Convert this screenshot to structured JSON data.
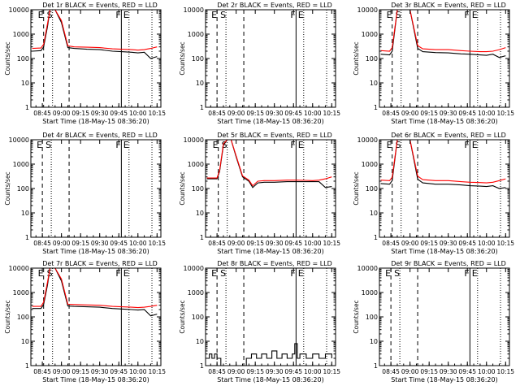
{
  "layout": {
    "rows": 3,
    "cols": 3
  },
  "common": {
    "ylabel": "Counts/sec",
    "xlabel": "Start Time (18-May-15 08:36:20)",
    "x_ticks": [
      "08:45",
      "09:00",
      "09:15",
      "09:30",
      "09:45",
      "10:00",
      "10:15"
    ],
    "y_ticks": [
      "1",
      "10",
      "100",
      "1000",
      "10000"
    ],
    "colors": {
      "events": "#000000",
      "lld": "#ff0000",
      "axis": "#000000"
    }
  },
  "chart_data": [
    {
      "type": "line",
      "title": "Det 1r BLACK = Events, RED = LLD",
      "xlim": [
        "08:36",
        "10:18"
      ],
      "ylim": [
        1,
        10000
      ],
      "yscale": "log",
      "markers": [
        {
          "time": "08:46",
          "label": "E",
          "style": "dashed"
        },
        {
          "time": "08:53",
          "label": "S",
          "style": "dotted"
        },
        {
          "time": "09:06",
          "label": "",
          "style": "dashed"
        },
        {
          "time": "09:47",
          "label": "F",
          "style": "solid"
        },
        {
          "time": "09:53",
          "label": "E",
          "style": "dotted"
        },
        {
          "time": "10:11",
          "label": "",
          "style": "dotted"
        }
      ],
      "series": [
        {
          "name": "BLACK = Events",
          "color": "#000000",
          "x": [
            "08:37",
            "08:44",
            "08:46",
            "08:49",
            "08:51",
            "08:53",
            "08:55",
            "09:00",
            "09:05",
            "09:10",
            "09:20",
            "09:30",
            "09:40",
            "09:47",
            "09:55",
            "10:00",
            "10:05",
            "10:10",
            "10:15"
          ],
          "y": [
            200,
            210,
            300,
            2000,
            10000,
            10000,
            10000,
            3000,
            280,
            260,
            240,
            230,
            200,
            190,
            180,
            170,
            180,
            100,
            120
          ]
        },
        {
          "name": "RED = LLD",
          "color": "#ff0000",
          "x": [
            "08:37",
            "08:44",
            "08:46",
            "08:49",
            "08:51",
            "08:53",
            "08:55",
            "09:00",
            "09:05",
            "09:10",
            "09:20",
            "09:30",
            "09:40",
            "09:47",
            "09:55",
            "10:00",
            "10:05",
            "10:10",
            "10:15"
          ],
          "y": [
            260,
            270,
            380,
            2600,
            10000,
            10000,
            10000,
            3600,
            330,
            300,
            290,
            280,
            250,
            240,
            230,
            220,
            230,
            260,
            300
          ]
        }
      ]
    },
    {
      "type": "line",
      "title": "Det 2r BLACK = Events, RED = LLD",
      "xlim": [
        "08:36",
        "10:18"
      ],
      "ylim": [
        1,
        10000
      ],
      "yscale": "log",
      "markers": [
        {
          "time": "08:45",
          "label": "E",
          "style": "dashed"
        },
        {
          "time": "08:52",
          "label": "S",
          "style": "dotted"
        },
        {
          "time": "09:06",
          "label": "",
          "style": "dashed"
        },
        {
          "time": "09:47",
          "label": "F",
          "style": "solid"
        },
        {
          "time": "09:53",
          "label": "E",
          "style": "dotted"
        },
        {
          "time": "10:11",
          "label": "",
          "style": "dotted"
        }
      ],
      "series": []
    },
    {
      "type": "line",
      "title": "Det 3r BLACK = Events, RED = LLD",
      "xlim": [
        "08:36",
        "10:18"
      ],
      "ylim": [
        1,
        10000
      ],
      "yscale": "log",
      "markers": [
        {
          "time": "08:46",
          "label": "E",
          "style": "dashed"
        },
        {
          "time": "08:53",
          "label": "S",
          "style": "dotted"
        },
        {
          "time": "09:06",
          "label": "",
          "style": "dashed"
        },
        {
          "time": "09:47",
          "label": "F",
          "style": "solid"
        },
        {
          "time": "09:53",
          "label": "E",
          "style": "dotted"
        },
        {
          "time": "10:11",
          "label": "",
          "style": "dotted"
        }
      ],
      "series": [
        {
          "name": "BLACK = Events",
          "color": "#000000",
          "x": [
            "08:37",
            "08:44",
            "08:46",
            "08:50",
            "08:53",
            "09:00",
            "09:06",
            "09:10",
            "09:20",
            "09:30",
            "09:40",
            "09:47",
            "09:55",
            "10:00",
            "10:05",
            "10:10",
            "10:15"
          ],
          "y": [
            150,
            140,
            200,
            10000,
            10000,
            10000,
            260,
            190,
            175,
            170,
            155,
            150,
            140,
            135,
            150,
            110,
            130
          ]
        },
        {
          "name": "RED = LLD",
          "color": "#ff0000",
          "x": [
            "08:37",
            "08:44",
            "08:46",
            "08:50",
            "08:53",
            "09:00",
            "09:06",
            "09:10",
            "09:20",
            "09:30",
            "09:40",
            "09:47",
            "09:55",
            "10:00",
            "10:05",
            "10:10",
            "10:15"
          ],
          "y": [
            210,
            200,
            280,
            10000,
            10000,
            10000,
            340,
            250,
            230,
            230,
            210,
            200,
            190,
            190,
            200,
            230,
            280
          ]
        }
      ]
    },
    {
      "type": "line",
      "title": "Det 4r BLACK = Events, RED = LLD",
      "xlim": [
        "08:36",
        "10:18"
      ],
      "ylim": [
        1,
        10000
      ],
      "yscale": "log",
      "markers": [
        {
          "time": "08:45",
          "label": "E",
          "style": "dashed"
        },
        {
          "time": "08:52",
          "label": "S",
          "style": "dotted"
        },
        {
          "time": "09:06",
          "label": "",
          "style": "dashed"
        },
        {
          "time": "09:47",
          "label": "F",
          "style": "solid"
        },
        {
          "time": "09:53",
          "label": "E",
          "style": "dotted"
        },
        {
          "time": "10:11",
          "label": "",
          "style": "dotted"
        }
      ],
      "series": []
    },
    {
      "type": "line",
      "title": "Det 5r BLACK = Events, RED = LLD",
      "xlim": [
        "08:36",
        "10:18"
      ],
      "ylim": [
        1,
        10000
      ],
      "yscale": "log",
      "markers": [
        {
          "time": "08:46",
          "label": "E",
          "style": "dashed"
        },
        {
          "time": "08:53",
          "label": "S",
          "style": "dotted"
        },
        {
          "time": "09:06",
          "label": "",
          "style": "dashed"
        },
        {
          "time": "09:47",
          "label": "F",
          "style": "solid"
        },
        {
          "time": "09:53",
          "label": "E",
          "style": "dotted"
        },
        {
          "time": "10:11",
          "label": "",
          "style": "dotted"
        }
      ],
      "series": [
        {
          "name": "BLACK = Events",
          "color": "#000000",
          "x": [
            "08:37",
            "08:45",
            "08:47",
            "08:50",
            "08:53",
            "08:56",
            "09:00",
            "09:05",
            "09:10",
            "09:13",
            "09:17",
            "09:22",
            "09:30",
            "09:40",
            "09:47",
            "09:55",
            "10:00",
            "10:05",
            "10:10",
            "10:15"
          ],
          "y": [
            250,
            250,
            500,
            6000,
            10000,
            10000,
            2000,
            300,
            200,
            110,
            170,
            180,
            180,
            190,
            190,
            190,
            190,
            190,
            110,
            120
          ]
        },
        {
          "name": "RED = LLD",
          "color": "#ff0000",
          "x": [
            "08:37",
            "08:45",
            "08:47",
            "08:50",
            "08:53",
            "08:56",
            "09:00",
            "09:05",
            "09:10",
            "09:13",
            "09:17",
            "09:22",
            "09:30",
            "09:40",
            "09:47",
            "09:55",
            "10:00",
            "10:05",
            "10:10",
            "10:15"
          ],
          "y": [
            270,
            270,
            560,
            6800,
            10000,
            10000,
            2200,
            330,
            220,
            130,
            200,
            210,
            210,
            220,
            220,
            215,
            210,
            220,
            250,
            300
          ]
        }
      ]
    },
    {
      "type": "line",
      "title": "Det 6r BLACK = Events, RED = LLD",
      "xlim": [
        "08:36",
        "10:18"
      ],
      "ylim": [
        1,
        10000
      ],
      "yscale": "log",
      "markers": [
        {
          "time": "08:46",
          "label": "E",
          "style": "dashed"
        },
        {
          "time": "08:53",
          "label": "S",
          "style": "dotted"
        },
        {
          "time": "09:06",
          "label": "",
          "style": "dashed"
        },
        {
          "time": "09:47",
          "label": "F",
          "style": "solid"
        },
        {
          "time": "09:53",
          "label": "E",
          "style": "dotted"
        },
        {
          "time": "10:11",
          "label": "",
          "style": "dotted"
        }
      ],
      "series": [
        {
          "name": "BLACK = Events",
          "color": "#000000",
          "x": [
            "08:37",
            "08:44",
            "08:46",
            "08:50",
            "08:53",
            "09:00",
            "09:06",
            "09:10",
            "09:20",
            "09:30",
            "09:40",
            "09:47",
            "09:55",
            "10:00",
            "10:05",
            "10:10",
            "10:15"
          ],
          "y": [
            160,
            150,
            210,
            10000,
            10000,
            10000,
            240,
            170,
            150,
            150,
            140,
            130,
            125,
            120,
            130,
            100,
            110
          ]
        },
        {
          "name": "RED = LLD",
          "color": "#ff0000",
          "x": [
            "08:37",
            "08:44",
            "08:46",
            "08:50",
            "08:53",
            "09:00",
            "09:06",
            "09:10",
            "09:20",
            "09:30",
            "09:40",
            "09:47",
            "09:55",
            "10:00",
            "10:05",
            "10:10",
            "10:15"
          ],
          "y": [
            220,
            210,
            290,
            10000,
            10000,
            10000,
            320,
            230,
            210,
            210,
            190,
            180,
            175,
            170,
            180,
            210,
            250
          ]
        }
      ]
    },
    {
      "type": "line",
      "title": "Det 7r BLACK = Events, RED = LLD",
      "xlim": [
        "08:36",
        "10:18"
      ],
      "ylim": [
        1,
        10000
      ],
      "yscale": "log",
      "markers": [
        {
          "time": "08:46",
          "label": "E",
          "style": "dashed"
        },
        {
          "time": "08:53",
          "label": "S",
          "style": "dotted"
        },
        {
          "time": "09:06",
          "label": "",
          "style": "dashed"
        },
        {
          "time": "09:47",
          "label": "F",
          "style": "solid"
        },
        {
          "time": "09:53",
          "label": "E",
          "style": "dotted"
        },
        {
          "time": "10:11",
          "label": "",
          "style": "dotted"
        }
      ],
      "series": [
        {
          "name": "BLACK = Events",
          "color": "#000000",
          "x": [
            "08:37",
            "08:44",
            "08:46",
            "08:49",
            "08:51",
            "08:53",
            "08:55",
            "09:00",
            "09:05",
            "09:10",
            "09:20",
            "09:30",
            "09:40",
            "09:47",
            "09:55",
            "10:00",
            "10:05",
            "10:10",
            "10:15"
          ],
          "y": [
            220,
            220,
            320,
            2000,
            10000,
            10000,
            10000,
            3000,
            280,
            270,
            260,
            250,
            220,
            210,
            200,
            190,
            200,
            110,
            130
          ]
        },
        {
          "name": "RED = LLD",
          "color": "#ff0000",
          "x": [
            "08:37",
            "08:44",
            "08:46",
            "08:49",
            "08:51",
            "08:53",
            "08:55",
            "09:00",
            "09:05",
            "09:10",
            "09:20",
            "09:30",
            "09:40",
            "09:47",
            "09:55",
            "10:00",
            "10:05",
            "10:10",
            "10:15"
          ],
          "y": [
            270,
            270,
            400,
            2600,
            10000,
            10000,
            10000,
            3600,
            330,
            320,
            310,
            300,
            270,
            260,
            250,
            240,
            250,
            270,
            300
          ]
        }
      ]
    },
    {
      "type": "line",
      "title": "Det 8r BLACK = Events, RED = LLD",
      "xlim": [
        "08:36",
        "10:18"
      ],
      "ylim": [
        1,
        10000
      ],
      "yscale": "log",
      "markers": [
        {
          "time": "08:45",
          "label": "E",
          "style": "dashed"
        },
        {
          "time": "08:52",
          "label": "S",
          "style": "dotted"
        },
        {
          "time": "09:06",
          "label": "",
          "style": "dashed"
        },
        {
          "time": "09:47",
          "label": "F",
          "style": "solid"
        },
        {
          "time": "09:53",
          "label": "E",
          "style": "dotted"
        },
        {
          "time": "10:11",
          "label": "",
          "style": "dotted"
        }
      ],
      "series": [
        {
          "name": "BLACK = Events",
          "color": "#000000",
          "x": [
            "08:37",
            "08:39",
            "08:41",
            "08:43",
            "08:45",
            "08:48",
            "09:08",
            "09:12",
            "09:16",
            "09:20",
            "09:24",
            "09:28",
            "09:32",
            "09:36",
            "09:40",
            "09:44",
            "09:46",
            "09:48",
            "09:50",
            "09:55",
            "10:00",
            "10:05",
            "10:10",
            "10:15"
          ],
          "y": [
            2,
            3,
            2,
            3,
            2,
            1,
            2,
            3,
            2,
            3,
            2,
            4,
            2,
            3,
            2,
            3,
            8,
            2,
            3,
            2,
            3,
            2,
            3,
            2
          ]
        }
      ]
    },
    {
      "type": "line",
      "title": "Det 9r BLACK = Events, RED = LLD",
      "xlim": [
        "08:36",
        "10:18"
      ],
      "ylim": [
        1,
        10000
      ],
      "yscale": "log",
      "markers": [
        {
          "time": "08:45",
          "label": "E",
          "style": "dashed"
        },
        {
          "time": "08:52",
          "label": "S",
          "style": "dotted"
        },
        {
          "time": "09:06",
          "label": "",
          "style": "dashed"
        },
        {
          "time": "09:47",
          "label": "F",
          "style": "solid"
        },
        {
          "time": "09:53",
          "label": "E",
          "style": "dotted"
        },
        {
          "time": "10:11",
          "label": "",
          "style": "dotted"
        }
      ],
      "series": []
    }
  ]
}
